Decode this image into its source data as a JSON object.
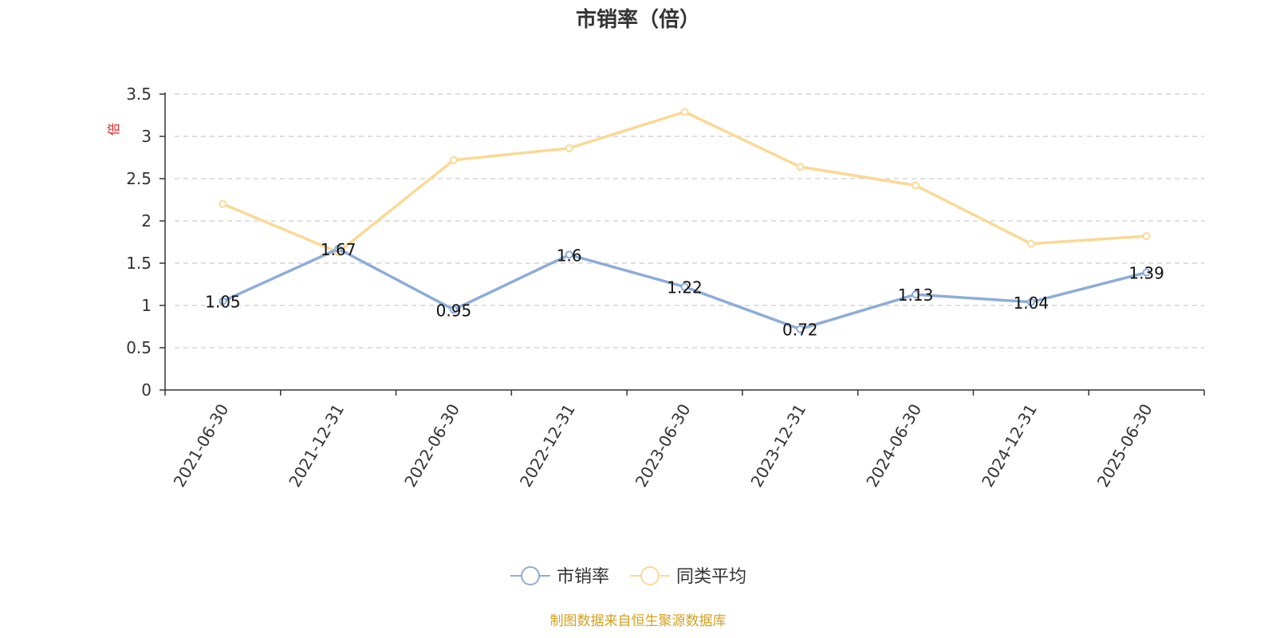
{
  "chart_data": {
    "type": "line",
    "title": "市销率（倍）",
    "ylabel": "倍",
    "categories": [
      "2021-06-30",
      "2021-12-31",
      "2022-06-30",
      "2022-12-31",
      "2023-06-30",
      "2023-12-31",
      "2024-06-30",
      "2024-12-31",
      "2025-06-30"
    ],
    "ylim": [
      0,
      3.5
    ],
    "yticks": [
      "0",
      "0.5",
      "1",
      "1.5",
      "2",
      "2.5",
      "3",
      "3.5"
    ],
    "grid": true,
    "legend_position": "bottom-center",
    "series": [
      {
        "name": "市销率",
        "color": "#8eacd8",
        "values": [
          1.05,
          1.67,
          0.95,
          1.6,
          1.22,
          0.72,
          1.13,
          1.04,
          1.39
        ],
        "show_labels": true
      },
      {
        "name": "同类平均",
        "color": "#fad995",
        "values": [
          2.2,
          1.63,
          2.72,
          2.86,
          3.29,
          2.64,
          2.42,
          1.73,
          1.82
        ],
        "show_labels": false
      }
    ]
  },
  "source_text": "制图数据来自恒生聚源数据库",
  "colors": {
    "unit": "#e02020",
    "source": "#d4a020",
    "axis": "#333333",
    "grid": "#cccccc"
  }
}
